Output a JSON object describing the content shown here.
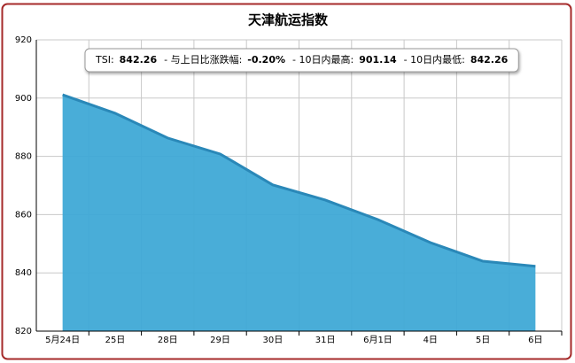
{
  "chart_data": {
    "type": "area",
    "title": "天津航运指数",
    "categories": [
      "5月24日",
      "25日",
      "28日",
      "29日",
      "30日",
      "31日",
      "6月1日",
      "4日",
      "5日",
      "6日"
    ],
    "values": [
      901.14,
      894.8,
      886.3,
      880.8,
      870.2,
      865,
      858.3,
      850.4,
      844,
      842.26
    ],
    "color": "#3fa9d6",
    "line_color": "#2a88b8",
    "ylim": [
      820,
      920
    ],
    "yticks": [
      820,
      840,
      860,
      880,
      900,
      920
    ],
    "grid": true,
    "tooltip": [
      {
        "label": "TSI:",
        "value": "842.26"
      },
      {
        "label": "- 与上日比涨跌幅:",
        "value": "-0.20%"
      },
      {
        "label": "- 10日内最高:",
        "value": "901.14"
      },
      {
        "label": "- 10日内最低:",
        "value": "842.26"
      }
    ]
  }
}
